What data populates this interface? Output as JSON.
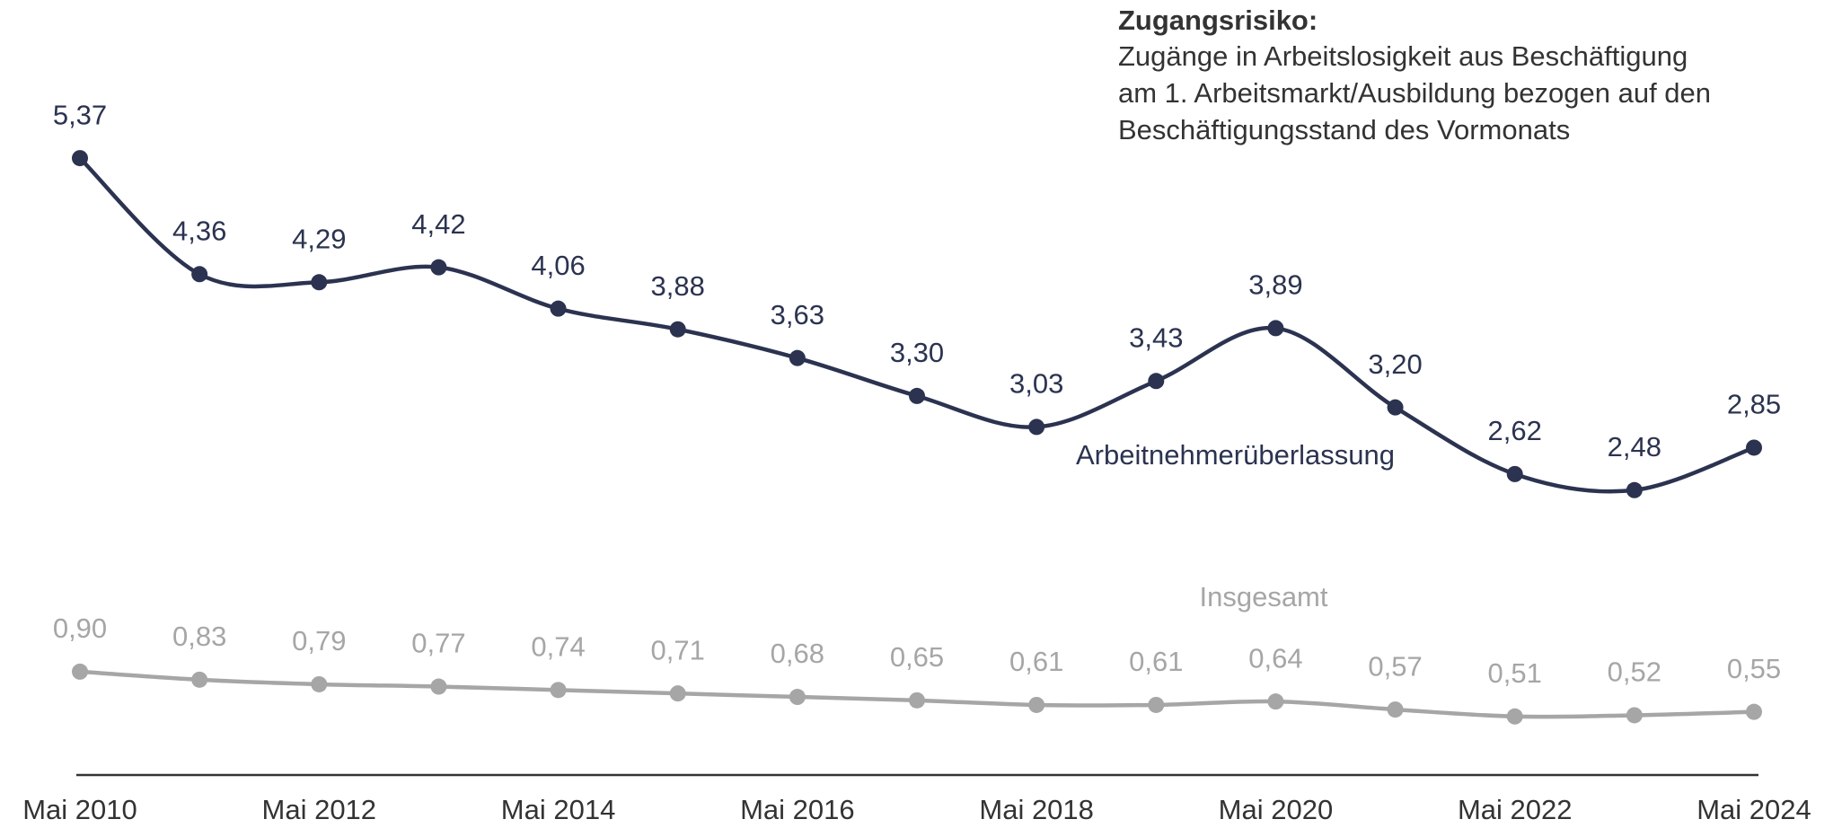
{
  "chart_data": {
    "type": "line",
    "title": "Zugangsrisiko:",
    "subtitle": [
      "Zugänge in Arbeitslosigkeit aus Beschäftigung",
      "am 1. Arbeitsmarkt/Ausbildung bezogen auf den",
      "Beschäftigungsstand des Vormonats"
    ],
    "categories": [
      "Mai 2010",
      null,
      "Mai 2012",
      null,
      "Mai 2014",
      null,
      "Mai 2016",
      null,
      "Mai 2018",
      null,
      "Mai 2020",
      null,
      "Mai 2022",
      null,
      "Mai 2024"
    ],
    "ylim": [
      0,
      6.7
    ],
    "series": [
      {
        "name": "Arbeitnehmerüberlassung",
        "color": "#2b3350",
        "values": [
          5.37,
          4.36,
          4.29,
          4.42,
          4.06,
          3.88,
          3.63,
          3.3,
          3.03,
          3.43,
          3.89,
          3.2,
          2.62,
          2.48,
          2.85
        ],
        "value_labels": [
          "5,37",
          "4,36",
          "4,29",
          "4,42",
          "4,06",
          "3,88",
          "3,63",
          "3,30",
          "3,03",
          "3,43",
          "3,89",
          "3,20",
          "2,62",
          "2,48",
          "2,85"
        ]
      },
      {
        "name": "Insgesamt",
        "color": "#a6a6a6",
        "values": [
          0.9,
          0.83,
          0.79,
          0.77,
          0.74,
          0.71,
          0.68,
          0.65,
          0.61,
          0.61,
          0.64,
          0.57,
          0.51,
          0.52,
          0.55
        ],
        "value_labels": [
          "0,90",
          "0,83",
          "0,79",
          "0,77",
          "0,74",
          "0,71",
          "0,68",
          "0,65",
          "0,61",
          "0,61",
          "0,64",
          "0,57",
          "0,51",
          "0,52",
          "0,55"
        ]
      }
    ]
  }
}
